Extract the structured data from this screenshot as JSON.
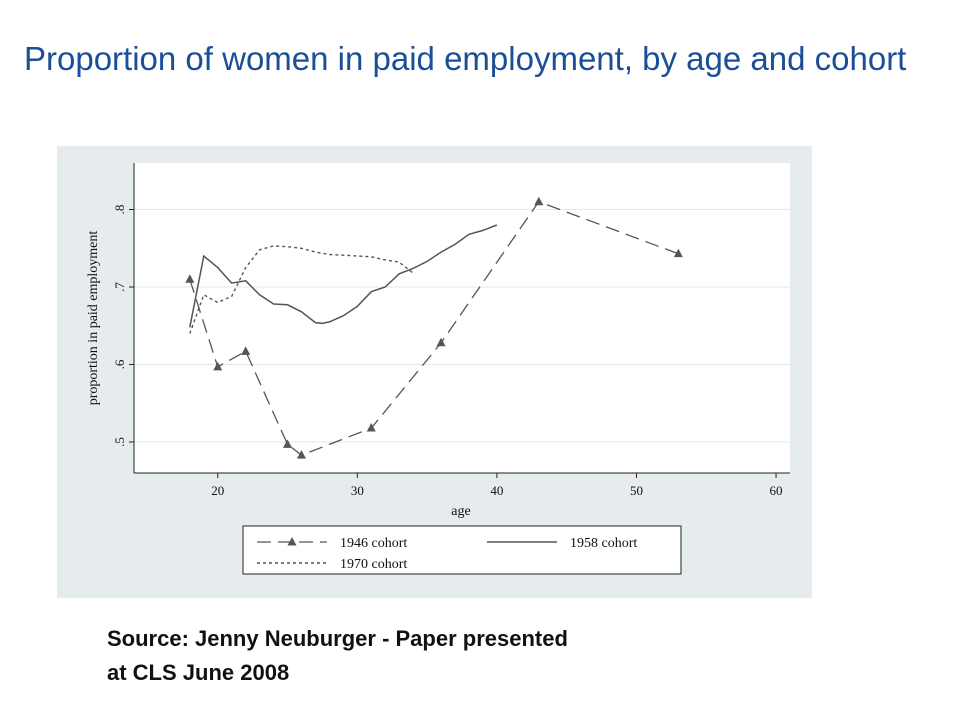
{
  "slide": {
    "title": "Proportion of women in paid employment, by age and cohort",
    "source_line1": "Source: Jenny Neuburger -  Paper presented",
    "source_line2": "at CLS June 2008"
  },
  "colors": {
    "title": "#1a4e96",
    "panel_background": "#e6ecee",
    "plot_background": "#ffffff",
    "series_line": "#555555"
  },
  "chart_data": {
    "type": "line",
    "title": "",
    "xlabel": "age",
    "ylabel": "proportion in paid employment",
    "xlim": [
      14,
      61
    ],
    "ylim": [
      0.46,
      0.86
    ],
    "x_ticks": [
      20,
      30,
      40,
      50,
      60
    ],
    "x_tick_labels": [
      "20",
      "30",
      "40",
      "50",
      "60"
    ],
    "y_ticks": [
      0.5,
      0.6,
      0.7,
      0.8
    ],
    "y_tick_labels": [
      ".5",
      ".6",
      ".7",
      ".8"
    ],
    "grid": true,
    "legend_position": "bottom",
    "series": [
      {
        "name": "1946 cohort",
        "style": "longdash-triangle",
        "x": [
          18,
          20,
          22,
          25,
          26,
          31,
          36,
          43,
          53
        ],
        "y": [
          0.71,
          0.597,
          0.617,
          0.497,
          0.483,
          0.518,
          0.628,
          0.81,
          0.743
        ]
      },
      {
        "name": "1958 cohort",
        "style": "solid",
        "x": [
          18,
          19,
          20,
          21,
          22,
          23,
          24,
          25,
          26,
          27,
          27.5,
          28,
          29,
          30,
          31,
          32,
          33,
          34,
          35,
          36,
          37,
          38,
          39,
          40
        ],
        "y": [
          0.648,
          0.74,
          0.725,
          0.705,
          0.708,
          0.69,
          0.678,
          0.677,
          0.668,
          0.654,
          0.653,
          0.655,
          0.663,
          0.675,
          0.694,
          0.7,
          0.717,
          0.724,
          0.733,
          0.745,
          0.755,
          0.768,
          0.773,
          0.78
        ]
      },
      {
        "name": "1970 cohort",
        "style": "dotted",
        "x": [
          18,
          19,
          20,
          21,
          22,
          23,
          24,
          25,
          26,
          27,
          28,
          29,
          30,
          31,
          32,
          33,
          34
        ],
        "y": [
          0.64,
          0.69,
          0.68,
          0.688,
          0.725,
          0.748,
          0.753,
          0.752,
          0.75,
          0.745,
          0.742,
          0.741,
          0.74,
          0.739,
          0.735,
          0.732,
          0.718
        ]
      }
    ]
  }
}
